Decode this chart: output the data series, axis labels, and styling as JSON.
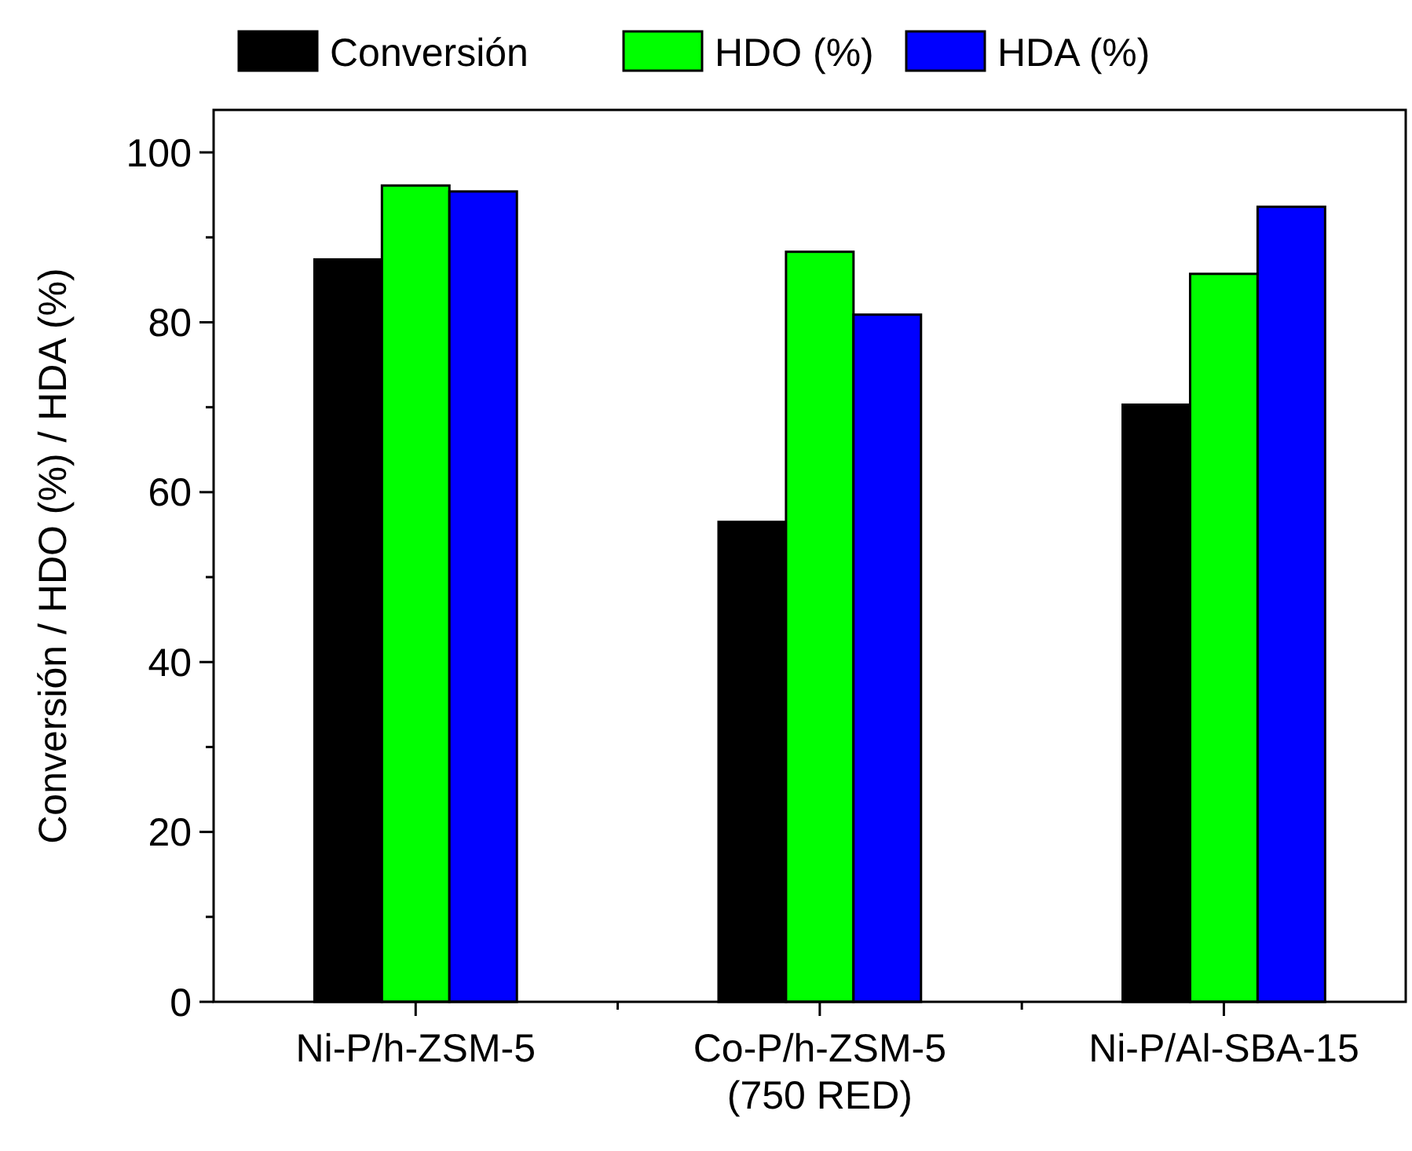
{
  "chart_data": {
    "type": "bar",
    "ylabel": "Conversión / HDO (%) / HDA (%)",
    "categories": [
      "Ni-P/h-ZSM-5",
      "Co-P/h-ZSM-5\n(750 RED)",
      "Ni-P/Al-SBA-15"
    ],
    "series": [
      {
        "name": "Conversión",
        "color": "#000000",
        "values": [
          87.4,
          56.5,
          70.3
        ]
      },
      {
        "name": "HDO (%)",
        "color": "#00ff00",
        "values": [
          96.1,
          88.3,
          85.7
        ]
      },
      {
        "name": "HDA (%)",
        "color": "#0000ff",
        "values": [
          95.4,
          80.9,
          93.6
        ]
      }
    ],
    "ylim": [
      0,
      105
    ],
    "yticks": [
      0,
      {
        "value": 10,
        "label": null
      },
      20,
      {
        "value": 30,
        "label": null
      },
      40,
      {
        "value": 50,
        "label": null
      },
      60,
      {
        "value": 70,
        "label": null
      },
      80,
      {
        "value": 90,
        "label": null
      },
      100
    ],
    "legend": "top",
    "grid": false
  }
}
